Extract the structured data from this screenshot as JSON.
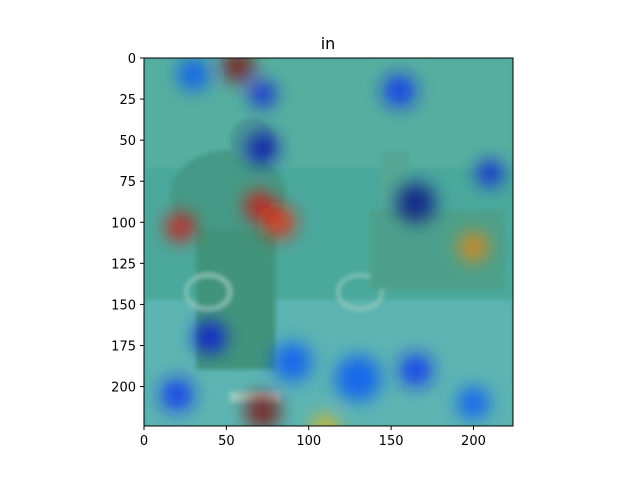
{
  "chart_data": {
    "type": "heatmap",
    "title": "in",
    "description_kind": "image with attention heatmap overlay",
    "xlim": [
      0,
      224
    ],
    "ylim": [
      224,
      0
    ],
    "x_ticks": [
      0,
      50,
      100,
      150,
      200
    ],
    "y_ticks": [
      0,
      25,
      50,
      75,
      100,
      125,
      150,
      175,
      200
    ],
    "grid": false,
    "colormap": "jet",
    "hotspots": [
      {
        "x": 57,
        "y": 5,
        "r": 10,
        "level": 1.0
      },
      {
        "x": 70,
        "y": 90,
        "r": 9,
        "level": 0.9
      },
      {
        "x": 82,
        "y": 100,
        "r": 10,
        "level": 0.85
      },
      {
        "x": 22,
        "y": 103,
        "r": 9,
        "level": 0.9
      },
      {
        "x": 72,
        "y": 215,
        "r": 11,
        "level": 1.0
      },
      {
        "x": 200,
        "y": 115,
        "r": 9,
        "level": 0.75
      },
      {
        "x": 110,
        "y": 225,
        "r": 8,
        "level": 0.7
      }
    ],
    "coldspots": [
      {
        "x": 72,
        "y": 55,
        "r": 10,
        "level": 0.05
      },
      {
        "x": 72,
        "y": 22,
        "r": 8,
        "level": 0.1
      },
      {
        "x": 165,
        "y": 88,
        "r": 12,
        "level": 0.0
      },
      {
        "x": 40,
        "y": 170,
        "r": 10,
        "level": 0.1
      },
      {
        "x": 90,
        "y": 185,
        "r": 12,
        "level": 0.2
      },
      {
        "x": 130,
        "y": 195,
        "r": 14,
        "level": 0.2
      },
      {
        "x": 165,
        "y": 190,
        "r": 10,
        "level": 0.15
      },
      {
        "x": 210,
        "y": 70,
        "r": 8,
        "level": 0.1
      },
      {
        "x": 155,
        "y": 20,
        "r": 10,
        "level": 0.15
      },
      {
        "x": 20,
        "y": 205,
        "r": 10,
        "level": 0.15
      },
      {
        "x": 200,
        "y": 210,
        "r": 10,
        "level": 0.2
      },
      {
        "x": 30,
        "y": 10,
        "r": 10,
        "level": 0.2
      }
    ],
    "base_level": 0.45
  }
}
